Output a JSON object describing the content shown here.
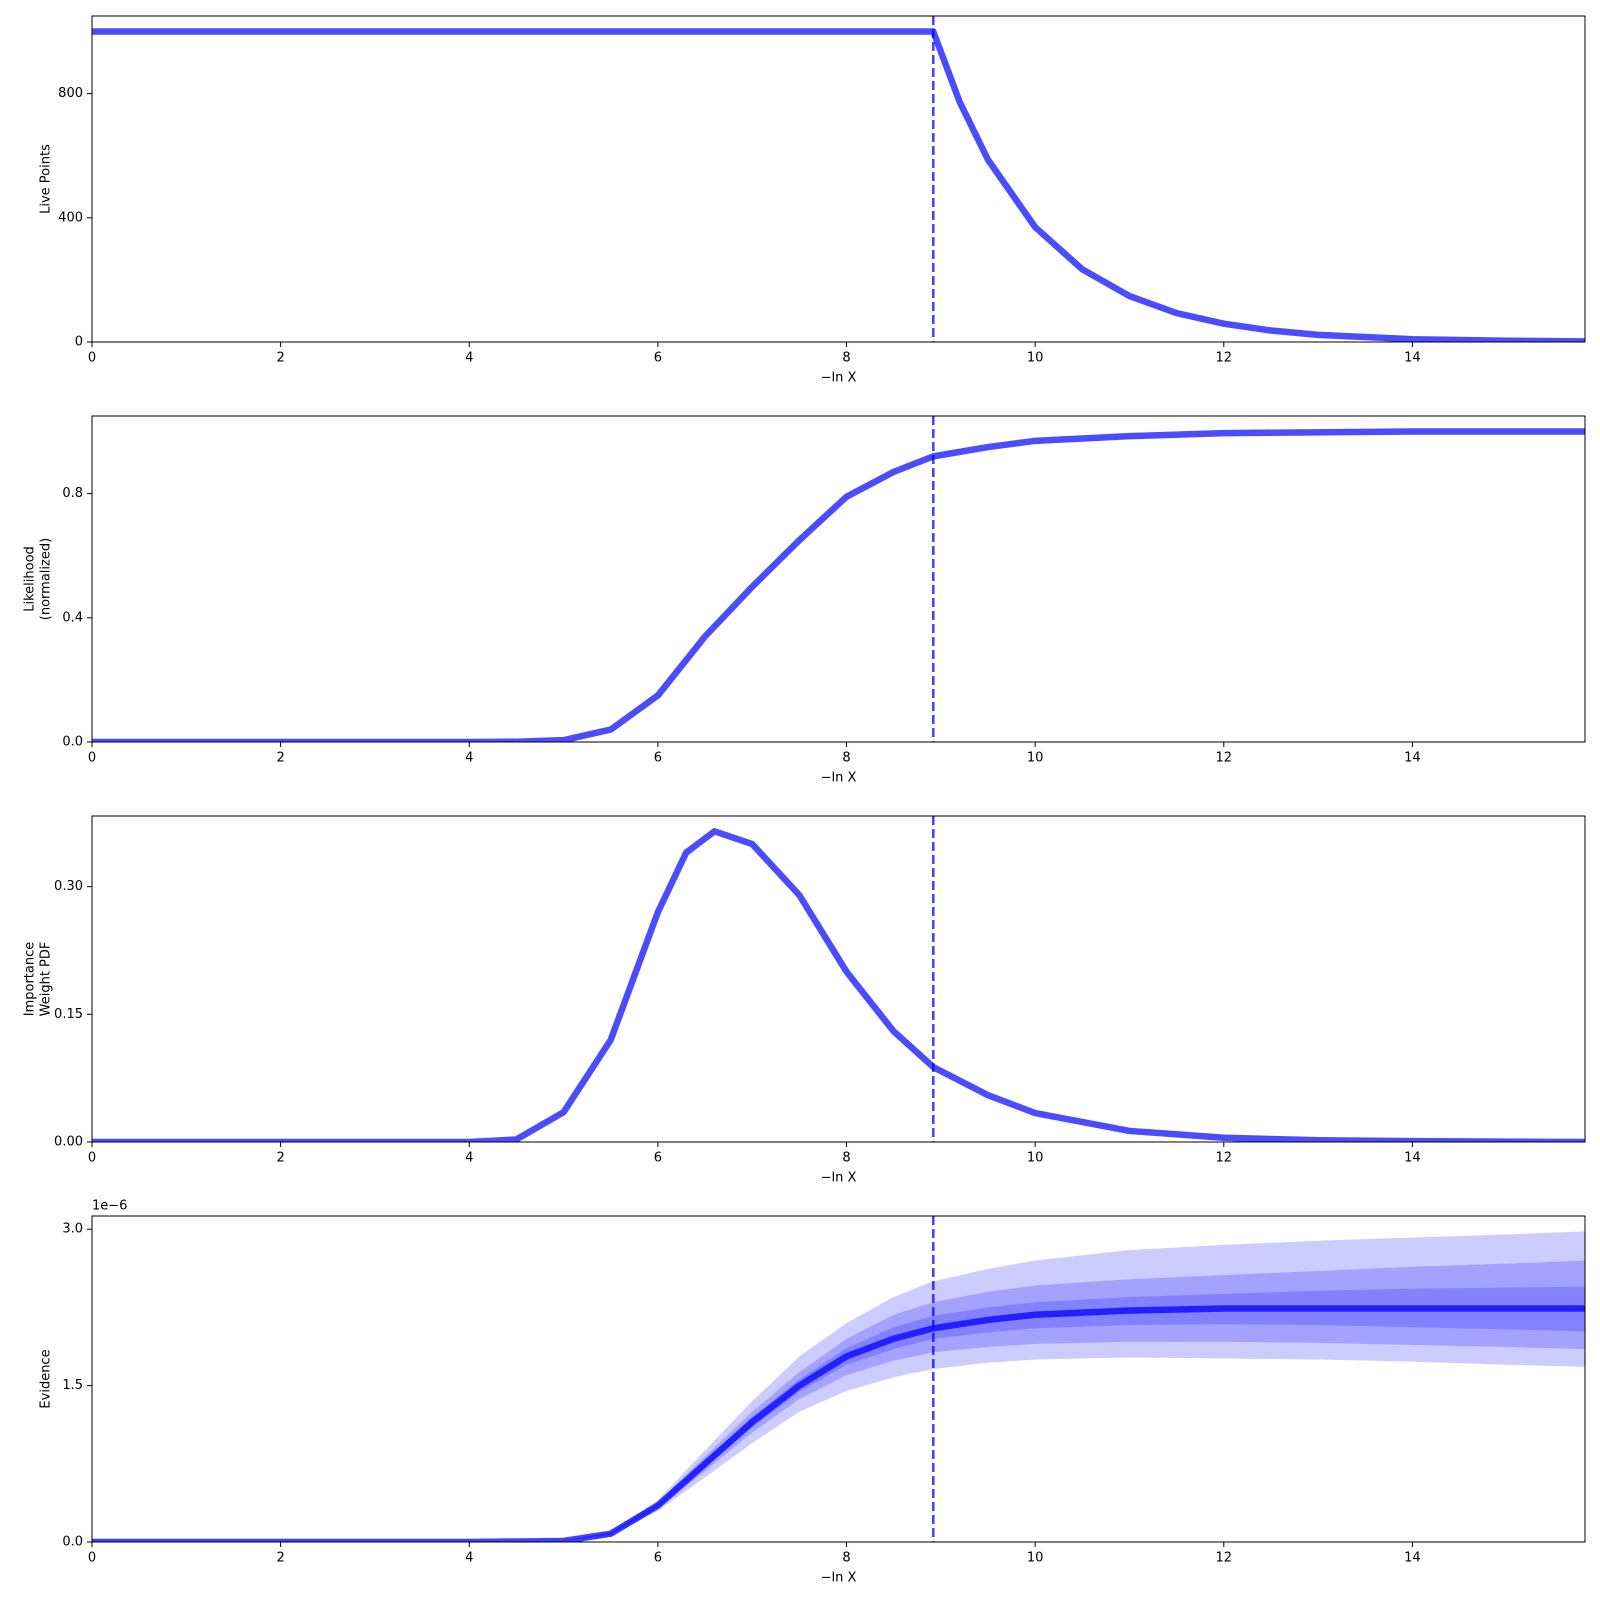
{
  "chart_data": [
    {
      "type": "line",
      "ylabel": [
        "Live Points"
      ],
      "xlabel": "−ln X",
      "xlim": [
        0,
        15.83
      ],
      "xticks": [
        0,
        2,
        4,
        6,
        8,
        10,
        12,
        14
      ],
      "ylim": [
        0,
        1050
      ],
      "yticks": [
        0,
        400,
        800
      ],
      "x": [
        0,
        2,
        4,
        6,
        8,
        8.92,
        9.2,
        9.5,
        10,
        10.5,
        11,
        11.5,
        12,
        12.5,
        13,
        14,
        15,
        15.83
      ],
      "series": [
        {
          "color": "rgba(0,0,255,0.7)",
          "values": [
            1000,
            1000,
            1000,
            1000,
            1000,
            1000,
            773,
            587,
            370,
            234,
            148,
            93,
            59,
            37,
            23,
            9,
            4,
            2
          ]
        }
      ],
      "vline": 8.92,
      "vline_color": "rgba(0,0,255,0.75)"
    },
    {
      "type": "line",
      "ylabel": [
        "Likelihood",
        "(normalized)"
      ],
      "xlabel": "−ln X",
      "xlim": [
        0,
        15.83
      ],
      "xticks": [
        0,
        2,
        4,
        6,
        8,
        10,
        12,
        14
      ],
      "ylim": [
        0,
        1.05
      ],
      "yticks": [
        {
          "value": 0,
          "label": "0.0"
        },
        0.4,
        0.8
      ],
      "x": [
        0,
        4,
        4.5,
        5,
        5.5,
        6,
        6.5,
        7,
        7.5,
        8,
        8.5,
        8.92,
        9.5,
        10,
        11,
        12,
        14,
        15.83
      ],
      "series": [
        {
          "color": "rgba(0,0,255,0.7)",
          "values": [
            0,
            0,
            0.001,
            0.006,
            0.04,
            0.15,
            0.34,
            0.5,
            0.65,
            0.79,
            0.87,
            0.92,
            0.95,
            0.97,
            0.985,
            0.995,
            1,
            1
          ]
        }
      ],
      "vline": 8.92,
      "vline_color": "rgba(0,0,255,0.75)"
    },
    {
      "type": "line",
      "ylabel": [
        "Importance",
        "Weight PDF"
      ],
      "xlabel": "−ln X",
      "xlim": [
        0,
        15.83
      ],
      "xticks": [
        0,
        2,
        4,
        6,
        8,
        10,
        12,
        14
      ],
      "ylim": [
        0,
        0.383
      ],
      "yticks": [
        {
          "value": 0,
          "label": "0.00"
        },
        0.15,
        {
          "value": 0.3,
          "label": "0.30"
        }
      ],
      "x": [
        0,
        4,
        4.5,
        5,
        5.5,
        6,
        6.3,
        6.6,
        7,
        7.5,
        8,
        8.5,
        8.92,
        9.5,
        10,
        11,
        12,
        13,
        14,
        15.83
      ],
      "series": [
        {
          "color": "rgba(0,0,255,0.7)",
          "values": [
            0,
            0,
            0.003,
            0.035,
            0.12,
            0.27,
            0.34,
            0.365,
            0.35,
            0.29,
            0.2,
            0.13,
            0.088,
            0.055,
            0.034,
            0.013,
            0.005,
            0.002,
            0.001,
            0
          ]
        }
      ],
      "vline": 8.92,
      "vline_color": "rgba(0,0,255,0.75)"
    },
    {
      "type": "line",
      "ylabel": [
        "Evidence"
      ],
      "xlabel": "−ln X",
      "offset_label": "1e−6",
      "xlim": [
        0,
        15.83
      ],
      "xticks": [
        0,
        2,
        4,
        6,
        8,
        10,
        12,
        14
      ],
      "ylim": [
        0,
        3.127
      ],
      "yticks": [
        {
          "value": 0,
          "label": "0.0"
        },
        1.5,
        {
          "value": 3,
          "label": "3.0"
        }
      ],
      "x": [
        0,
        4,
        5,
        5.5,
        6,
        6.5,
        7,
        7.5,
        8,
        8.5,
        8.92,
        9.5,
        10,
        11,
        12,
        13,
        14,
        15,
        15.83
      ],
      "bands": [
        {
          "color": "rgba(0,0,255,0.2)",
          "upper": [
            0,
            0,
            0.012,
            0.1,
            0.4,
            0.88,
            1.35,
            1.78,
            2.1,
            2.35,
            2.5,
            2.62,
            2.7,
            2.8,
            2.85,
            2.89,
            2.92,
            2.95,
            2.98
          ],
          "lower": [
            0,
            0,
            0.008,
            0.06,
            0.3,
            0.62,
            0.95,
            1.25,
            1.45,
            1.58,
            1.66,
            1.72,
            1.75,
            1.77,
            1.76,
            1.75,
            1.73,
            1.7,
            1.68
          ]
        },
        {
          "color": "rgba(0,0,255,0.2)",
          "upper": [
            0,
            0,
            0.011,
            0.09,
            0.38,
            0.82,
            1.25,
            1.63,
            1.95,
            2.18,
            2.3,
            2.4,
            2.46,
            2.52,
            2.56,
            2.6,
            2.64,
            2.67,
            2.7
          ],
          "lower": [
            0,
            0,
            0.009,
            0.07,
            0.32,
            0.68,
            1.05,
            1.37,
            1.6,
            1.74,
            1.82,
            1.87,
            1.9,
            1.92,
            1.92,
            1.91,
            1.89,
            1.87,
            1.85
          ]
        },
        {
          "color": "rgba(0,0,255,0.2)",
          "upper": [
            0,
            0,
            0.01,
            0.085,
            0.36,
            0.78,
            1.2,
            1.56,
            1.86,
            2.06,
            2.17,
            2.25,
            2.3,
            2.35,
            2.38,
            2.41,
            2.43,
            2.44,
            2.45
          ],
          "lower": [
            0,
            0,
            0.01,
            0.075,
            0.34,
            0.72,
            1.1,
            1.44,
            1.7,
            1.85,
            1.95,
            2.01,
            2.05,
            2.08,
            2.09,
            2.08,
            2.06,
            2.04,
            2.02
          ]
        }
      ],
      "series": [
        {
          "color": "rgba(0,0,255,0.75)",
          "values": [
            0,
            0,
            0.01,
            0.08,
            0.35,
            0.75,
            1.15,
            1.5,
            1.78,
            1.95,
            2.05,
            2.13,
            2.18,
            2.22,
            2.24,
            2.24,
            2.24,
            2.24,
            2.24
          ]
        }
      ],
      "vline": 8.92,
      "vline_color": "rgba(0,0,255,0.75)"
    }
  ]
}
